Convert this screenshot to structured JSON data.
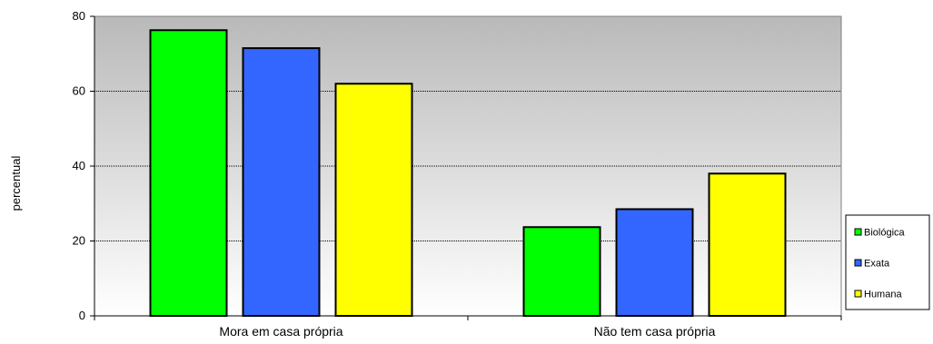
{
  "chart_data": {
    "type": "bar",
    "title": "",
    "xlabel": "",
    "ylabel": "percentual",
    "ylim": [
      0,
      80
    ],
    "yticks": [
      0,
      20,
      40,
      60,
      80
    ],
    "categories": [
      "Mora em casa própria",
      "Não tem casa própria"
    ],
    "series": [
      {
        "name": "Biológica",
        "values": [
          76.3,
          23.7
        ],
        "color": "#00ff00"
      },
      {
        "name": "Exata",
        "values": [
          71.5,
          28.5
        ],
        "color": "#3366ff"
      },
      {
        "name": "Humana",
        "values": [
          62.0,
          38.0
        ],
        "color": "#ffff00"
      }
    ],
    "grid": true,
    "legend_position": "right",
    "plot_background": "gray-to-white gradient"
  }
}
